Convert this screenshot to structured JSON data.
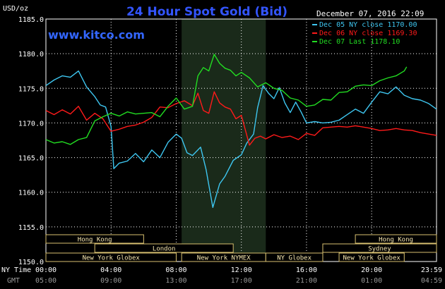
{
  "header": {
    "unit": "USD/oz",
    "title": "24 Hour Spot Gold (Bid)",
    "date": "December 07, 2016 22:09",
    "website": "www.kitco.com"
  },
  "axis_labels": {
    "ny_time": "NY Time",
    "gmt": "GMT"
  },
  "colors": {
    "background": "#000000",
    "grid": "#ffffff",
    "shade": "#1a2a1a",
    "title": "#3355ff",
    "website": "#3366ff",
    "market_fill": "#000000",
    "market_border": "#d8c070",
    "market_text": "#f7e7b0"
  },
  "legend": [
    {
      "label": "Dec 05 NY close 1170.00",
      "color": "#3ec6f0"
    },
    {
      "label": "Dec 06 NY close 1169.30",
      "color": "#ff1a1a"
    },
    {
      "label": "Dec 07 Last 1178.10",
      "color": "#22dd22"
    }
  ],
  "markets": [
    {
      "label": "Hong Kong",
      "start": "00:00",
      "end": "06:00"
    },
    {
      "label": "London",
      "start": "03:00",
      "end": "11:30"
    },
    {
      "label": "New York Globex",
      "start": "00:00",
      "end": "08:00"
    },
    {
      "label": "New York NYMEX",
      "start": "08:20",
      "end": "13:30"
    },
    {
      "label": "NY Globex",
      "start": "13:30",
      "end": "17:00"
    },
    {
      "label": "Hong Kong",
      "start": "19:00",
      "end": "24:00"
    },
    {
      "label": "Sydney",
      "start": "17:00",
      "end": "24:00"
    },
    {
      "label": "New York Globex",
      "start": "18:00",
      "end": "22:00"
    }
  ],
  "chart_data": {
    "type": "line",
    "title": "24 Hour Spot Gold (Bid)",
    "ylabel": "USD/oz",
    "ylim": [
      1150,
      1185
    ],
    "y_ticks": [
      "1150.0",
      "1155.0",
      "1160.0",
      "1165.0",
      "1170.0",
      "1175.0",
      "1180.0",
      "1185.0"
    ],
    "x_ticks_ny": [
      "00:00",
      "04:00",
      "08:00",
      "12:00",
      "16:00",
      "20:00",
      "23:59"
    ],
    "x_ticks_gmt": [
      "05:00",
      "09:00",
      "13:00",
      "17:00",
      "21:00",
      "01:00",
      "04:59"
    ],
    "shaded_period": [
      "08:20",
      "13:30"
    ],
    "grid": true,
    "legend_position": "top-right",
    "series": [
      {
        "name": "Dec 05 NY close 1170.00",
        "color": "#3ec6f0",
        "points": [
          [
            "00:00",
            1175.4
          ],
          [
            "00:30",
            1176.2
          ],
          [
            "01:00",
            1176.8
          ],
          [
            "01:30",
            1176.6
          ],
          [
            "02:00",
            1177.5
          ],
          [
            "02:30",
            1175.2
          ],
          [
            "03:00",
            1173.8
          ],
          [
            "03:20",
            1172.6
          ],
          [
            "03:40",
            1172.3
          ],
          [
            "04:00",
            1169.5
          ],
          [
            "04:10",
            1163.4
          ],
          [
            "04:30",
            1164.2
          ],
          [
            "05:00",
            1164.5
          ],
          [
            "05:30",
            1165.6
          ],
          [
            "06:00",
            1164.4
          ],
          [
            "06:30",
            1166.1
          ],
          [
            "07:00",
            1165.0
          ],
          [
            "07:30",
            1167.2
          ],
          [
            "08:00",
            1168.4
          ],
          [
            "08:20",
            1167.8
          ],
          [
            "08:40",
            1165.7
          ],
          [
            "09:00",
            1165.3
          ],
          [
            "09:30",
            1166.5
          ],
          [
            "09:50",
            1163.3
          ],
          [
            "10:15",
            1157.8
          ],
          [
            "10:40",
            1161.2
          ],
          [
            "11:00",
            1162.3
          ],
          [
            "11:30",
            1164.6
          ],
          [
            "12:00",
            1165.4
          ],
          [
            "12:20",
            1167.1
          ],
          [
            "12:45",
            1168.4
          ],
          [
            "13:00",
            1172.2
          ],
          [
            "13:20",
            1175.4
          ],
          [
            "13:40",
            1174.3
          ],
          [
            "14:00",
            1173.5
          ],
          [
            "14:20",
            1175.1
          ],
          [
            "14:40",
            1172.9
          ],
          [
            "15:00",
            1171.5
          ],
          [
            "15:20",
            1173.0
          ],
          [
            "15:40",
            1171.6
          ],
          [
            "16:00",
            1170.0
          ],
          [
            "16:30",
            1170.2
          ],
          [
            "17:00",
            1170.0
          ],
          [
            "17:30",
            1170.1
          ],
          [
            "18:00",
            1170.4
          ],
          [
            "18:30",
            1171.2
          ],
          [
            "19:00",
            1172.0
          ],
          [
            "19:30",
            1171.4
          ],
          [
            "20:00",
            1173.0
          ],
          [
            "20:30",
            1174.5
          ],
          [
            "21:00",
            1174.2
          ],
          [
            "21:30",
            1175.2
          ],
          [
            "22:00",
            1174.0
          ],
          [
            "22:30",
            1173.5
          ],
          [
            "23:00",
            1173.3
          ],
          [
            "23:30",
            1172.8
          ],
          [
            "23:59",
            1172.0
          ]
        ]
      },
      {
        "name": "Dec 06 NY close 1169.30",
        "color": "#ff1a1a",
        "points": [
          [
            "00:00",
            1171.8
          ],
          [
            "00:30",
            1171.2
          ],
          [
            "01:00",
            1171.9
          ],
          [
            "01:30",
            1171.3
          ],
          [
            "02:00",
            1172.4
          ],
          [
            "02:30",
            1170.4
          ],
          [
            "03:00",
            1171.4
          ],
          [
            "03:30",
            1170.6
          ],
          [
            "04:00",
            1168.8
          ],
          [
            "04:30",
            1169.1
          ],
          [
            "05:00",
            1169.5
          ],
          [
            "05:30",
            1169.7
          ],
          [
            "06:00",
            1170.1
          ],
          [
            "06:30",
            1170.8
          ],
          [
            "07:00",
            1172.3
          ],
          [
            "07:30",
            1172.2
          ],
          [
            "08:00",
            1172.8
          ],
          [
            "08:30",
            1173.2
          ],
          [
            "09:00",
            1172.5
          ],
          [
            "09:20",
            1174.3
          ],
          [
            "09:40",
            1171.8
          ],
          [
            "10:00",
            1171.4
          ],
          [
            "10:20",
            1174.5
          ],
          [
            "10:40",
            1172.9
          ],
          [
            "11:00",
            1172.3
          ],
          [
            "11:20",
            1172.0
          ],
          [
            "11:40",
            1170.6
          ],
          [
            "12:00",
            1171.1
          ],
          [
            "12:30",
            1166.8
          ],
          [
            "12:50",
            1167.8
          ],
          [
            "13:10",
            1168.1
          ],
          [
            "13:30",
            1167.7
          ],
          [
            "14:00",
            1168.3
          ],
          [
            "14:30",
            1167.9
          ],
          [
            "15:00",
            1168.1
          ],
          [
            "15:30",
            1167.6
          ],
          [
            "16:00",
            1168.5
          ],
          [
            "16:30",
            1168.2
          ],
          [
            "17:00",
            1169.3
          ],
          [
            "17:30",
            1169.4
          ],
          [
            "18:00",
            1169.5
          ],
          [
            "18:30",
            1169.4
          ],
          [
            "19:00",
            1169.6
          ],
          [
            "19:30",
            1169.4
          ],
          [
            "20:00",
            1169.2
          ],
          [
            "20:30",
            1168.9
          ],
          [
            "21:00",
            1169.0
          ],
          [
            "21:30",
            1169.2
          ],
          [
            "22:00",
            1169.0
          ],
          [
            "22:30",
            1168.9
          ],
          [
            "23:00",
            1168.6
          ],
          [
            "23:30",
            1168.4
          ],
          [
            "23:59",
            1168.2
          ]
        ]
      },
      {
        "name": "Dec 07 Last 1178.10",
        "color": "#22dd22",
        "points": [
          [
            "00:00",
            1167.6
          ],
          [
            "00:30",
            1167.1
          ],
          [
            "01:00",
            1167.3
          ],
          [
            "01:30",
            1166.9
          ],
          [
            "02:00",
            1167.6
          ],
          [
            "02:30",
            1167.9
          ],
          [
            "03:00",
            1170.3
          ],
          [
            "03:30",
            1170.9
          ],
          [
            "04:00",
            1171.4
          ],
          [
            "04:30",
            1171.0
          ],
          [
            "05:00",
            1171.6
          ],
          [
            "05:30",
            1171.3
          ],
          [
            "06:00",
            1171.4
          ],
          [
            "06:30",
            1171.5
          ],
          [
            "07:00",
            1170.9
          ],
          [
            "07:30",
            1172.4
          ],
          [
            "08:00",
            1173.6
          ],
          [
            "08:30",
            1172.0
          ],
          [
            "09:00",
            1172.4
          ],
          [
            "09:20",
            1176.8
          ],
          [
            "09:40",
            1178.0
          ],
          [
            "10:00",
            1177.5
          ],
          [
            "10:20",
            1179.9
          ],
          [
            "10:40",
            1178.6
          ],
          [
            "11:00",
            1177.9
          ],
          [
            "11:20",
            1177.6
          ],
          [
            "11:40",
            1176.8
          ],
          [
            "12:00",
            1177.3
          ],
          [
            "12:30",
            1176.5
          ],
          [
            "13:00",
            1175.2
          ],
          [
            "13:30",
            1175.8
          ],
          [
            "14:00",
            1175.0
          ],
          [
            "14:30",
            1174.7
          ],
          [
            "15:00",
            1173.6
          ],
          [
            "15:30",
            1173.3
          ],
          [
            "16:00",
            1172.4
          ],
          [
            "16:30",
            1172.6
          ],
          [
            "17:00",
            1173.4
          ],
          [
            "17:30",
            1173.3
          ],
          [
            "18:00",
            1174.4
          ],
          [
            "18:30",
            1174.5
          ],
          [
            "19:00",
            1175.3
          ],
          [
            "19:30",
            1175.5
          ],
          [
            "20:00",
            1175.4
          ],
          [
            "20:30",
            1176.1
          ],
          [
            "21:00",
            1176.5
          ],
          [
            "21:30",
            1176.8
          ],
          [
            "22:00",
            1177.5
          ],
          [
            "22:09",
            1178.1
          ]
        ]
      }
    ]
  }
}
